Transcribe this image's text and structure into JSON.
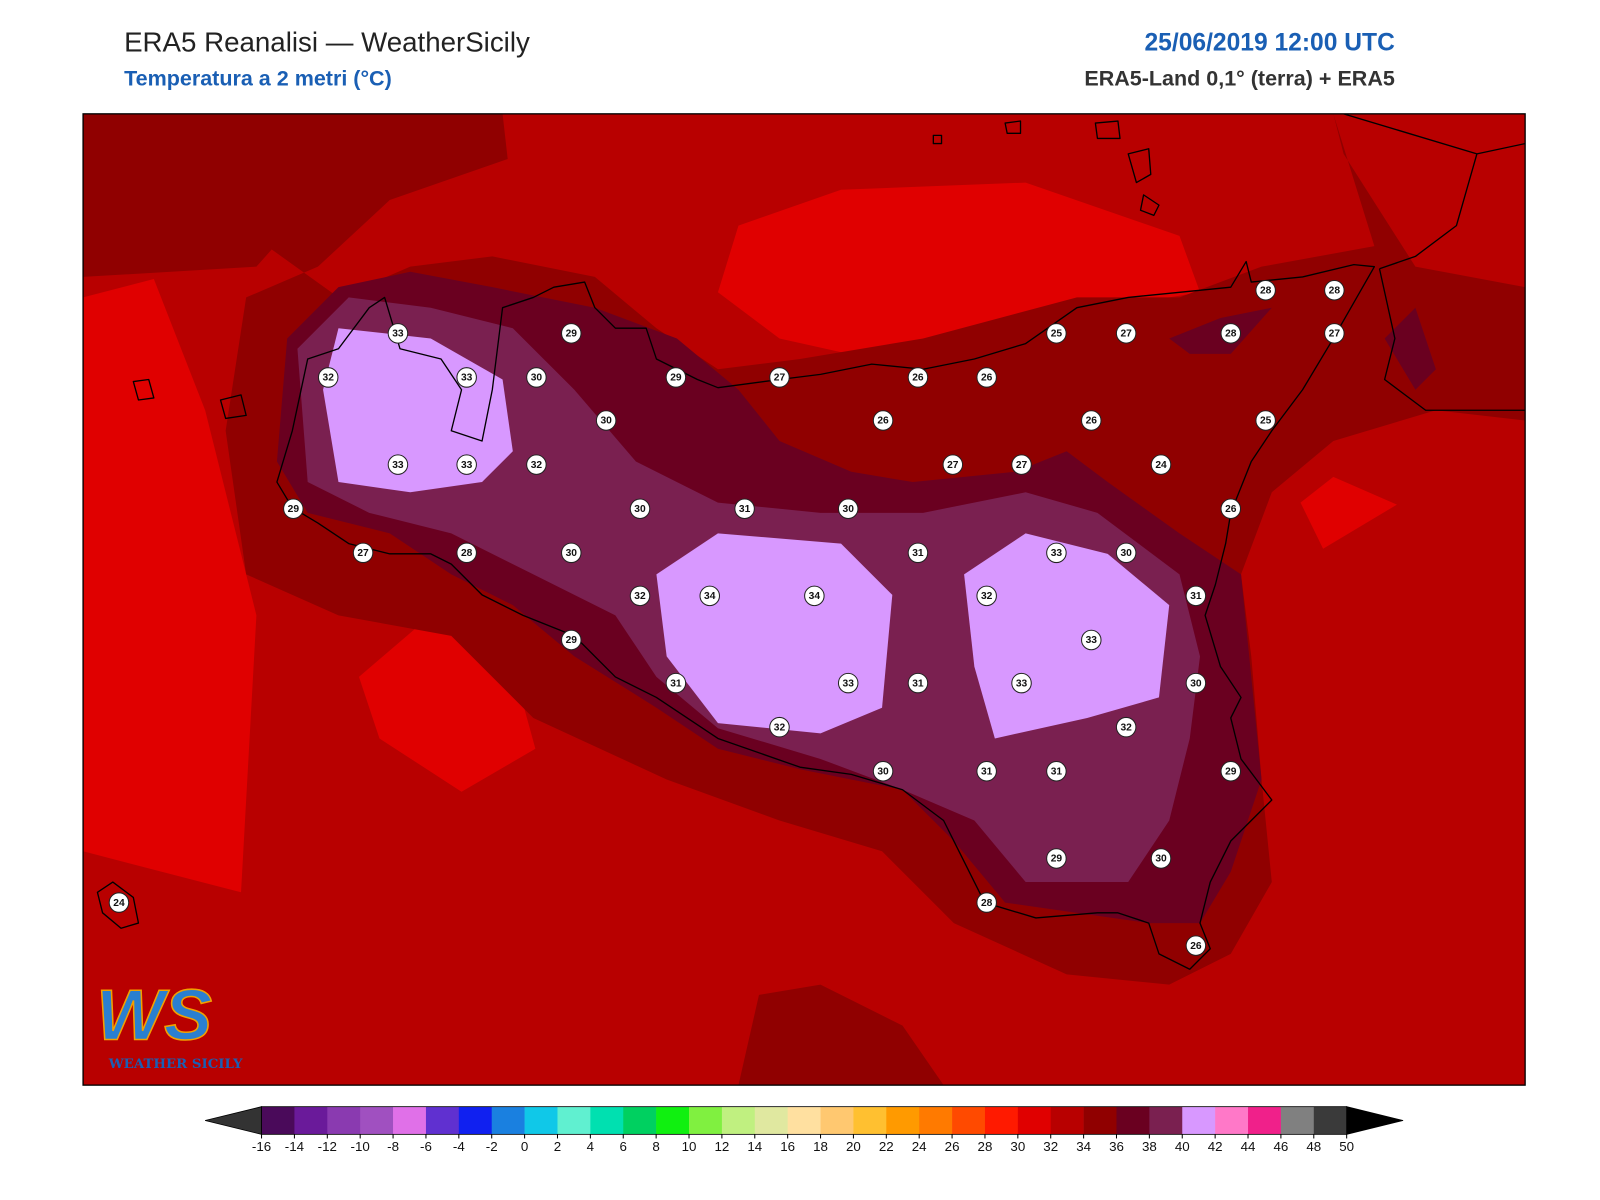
{
  "header": {
    "title": "ERA5 Reanalisi — WeatherSicily",
    "subtitle": "Temperatura a 2 metri (°C)",
    "datetime": "25/06/2019 12:00 UTC",
    "source": "ERA5-Land 0,1° (terra) + ERA5"
  },
  "logo": {
    "mark": "WS",
    "name": "WEATHER SICILY"
  },
  "stations": [
    33,
    29,
    32,
    33,
    30,
    29,
    27,
    26,
    26,
    25,
    27,
    28,
    28,
    28,
    27,
    30,
    26,
    26,
    25,
    33,
    33,
    32,
    27,
    27,
    24,
    29,
    30,
    31,
    30,
    26,
    27,
    28,
    30,
    31,
    33,
    30,
    32,
    34,
    34,
    32,
    31,
    29,
    33,
    31,
    33,
    31,
    33,
    30,
    32,
    32,
    30,
    31,
    31,
    29,
    29,
    30,
    28,
    24,
    26
  ],
  "colorbar": {
    "ticks": [
      -16,
      -14,
      -12,
      -10,
      -8,
      -6,
      -4,
      -2,
      0,
      2,
      4,
      6,
      8,
      10,
      12,
      14,
      16,
      18,
      20,
      22,
      24,
      26,
      28,
      30,
      32,
      34,
      36,
      38,
      40,
      42,
      44,
      46,
      48,
      50
    ],
    "colors": [
      "#4a0a5a",
      "#6a1a9a",
      "#8a3ab0",
      "#a050c0",
      "#e070e8",
      "#6030d0",
      "#1020f0",
      "#1a80e0",
      "#10c8e8",
      "#60f0d0",
      "#00e0b0",
      "#00d060",
      "#10f010",
      "#80f040",
      "#c0f080",
      "#e0e8a0",
      "#ffe0a0",
      "#ffc870",
      "#ffc030",
      "#ff9a00",
      "#ff7a00",
      "#ff4a00",
      "#ff1a00",
      "#e00000",
      "#b80000",
      "#900000",
      "#6a0020",
      "#7a2050",
      "#d898ff",
      "#ff78c8",
      "#f0208a",
      "#808080",
      "#3a3a3a"
    ],
    "under_color": "#333333",
    "over_color": "#000000"
  }
}
